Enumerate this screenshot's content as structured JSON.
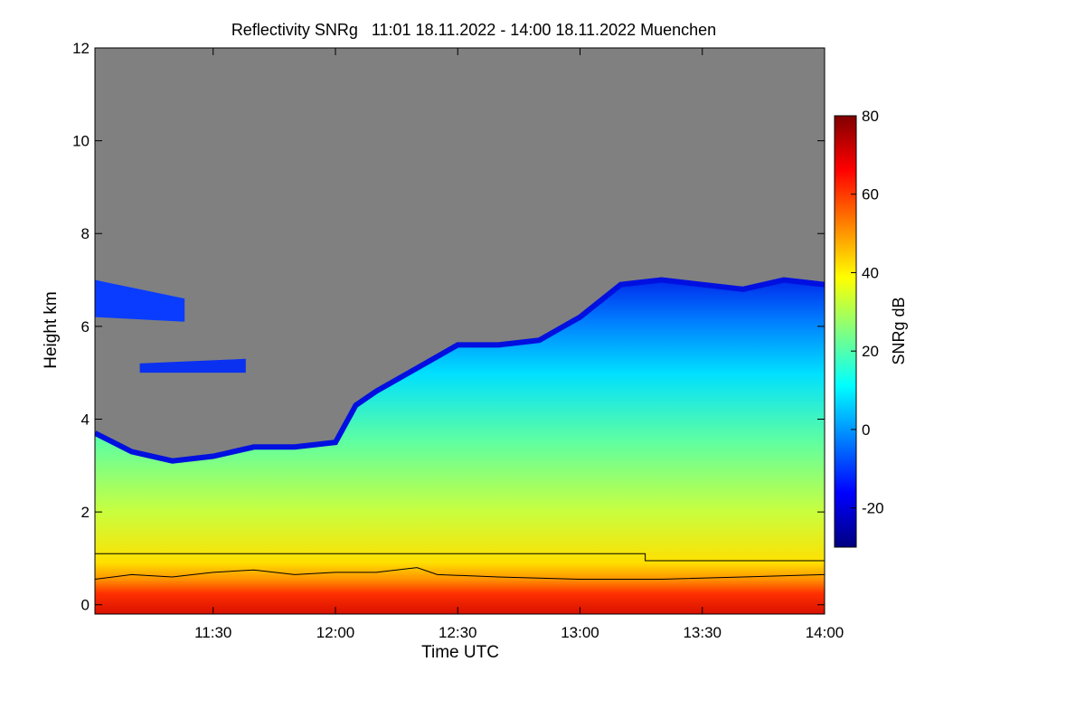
{
  "chart_data": {
    "type": "heatmap",
    "title": "Reflectivity SNRg   11:01 18.11.2022 - 14:00 18.11.2022 Muenchen",
    "xlabel": "Time UTC",
    "ylabel": "Height km",
    "x_range": [
      "11:01",
      "14:00"
    ],
    "x_ticks": [
      "11:30",
      "12:00",
      "12:30",
      "13:00",
      "13:30",
      "14:00"
    ],
    "y_range": [
      0,
      12
    ],
    "y_ticks": [
      "0",
      "2",
      "4",
      "6",
      "8",
      "10",
      "12"
    ],
    "no_signal_color": "#808080",
    "colorbar": {
      "label": "SNRg dB",
      "range": [
        -30,
        80
      ],
      "ticks": [
        "-20",
        "0",
        "20",
        "40",
        "60",
        "80"
      ],
      "colors": [
        "#000080",
        "#0000ff",
        "#0080ff",
        "#00ffff",
        "#80ff80",
        "#ffff00",
        "#ff8000",
        "#ff0000",
        "#800000"
      ]
    },
    "echo_top_km": {
      "time": [
        "11:01",
        "11:10",
        "11:20",
        "11:30",
        "11:40",
        "11:50",
        "12:00",
        "12:05",
        "12:10",
        "12:20",
        "12:30",
        "12:40",
        "12:50",
        "13:00",
        "13:10",
        "13:20",
        "13:30",
        "13:40",
        "13:50",
        "14:00"
      ],
      "height": [
        3.7,
        3.3,
        3.1,
        3.2,
        3.4,
        3.4,
        3.5,
        4.3,
        4.6,
        5.1,
        5.6,
        5.6,
        5.7,
        6.2,
        6.9,
        7.0,
        6.9,
        6.8,
        7.0,
        6.9
      ]
    },
    "upper_layer_km": {
      "time": [
        "11:01",
        "11:23"
      ],
      "top": [
        7.0,
        6.6
      ],
      "base": [
        6.2,
        6.1
      ]
    },
    "mid_layer_km": {
      "time": [
        "11:12",
        "11:38"
      ],
      "top": [
        5.2,
        5.3
      ],
      "base": [
        5.0,
        5.0
      ]
    },
    "reference_line_km": {
      "time": [
        "11:01",
        "13:16",
        "13:16",
        "14:00"
      ],
      "height": [
        1.1,
        1.1,
        0.95,
        0.95
      ]
    },
    "boundary_layer_km": {
      "time": [
        "11:01",
        "11:10",
        "11:20",
        "11:30",
        "11:40",
        "11:50",
        "12:00",
        "12:10",
        "12:20",
        "12:25",
        "12:40",
        "13:00",
        "13:20",
        "13:40",
        "14:00"
      ],
      "height": [
        0.55,
        0.65,
        0.6,
        0.7,
        0.75,
        0.65,
        0.7,
        0.7,
        0.8,
        0.65,
        0.6,
        0.55,
        0.55,
        0.6,
        0.65
      ]
    }
  }
}
